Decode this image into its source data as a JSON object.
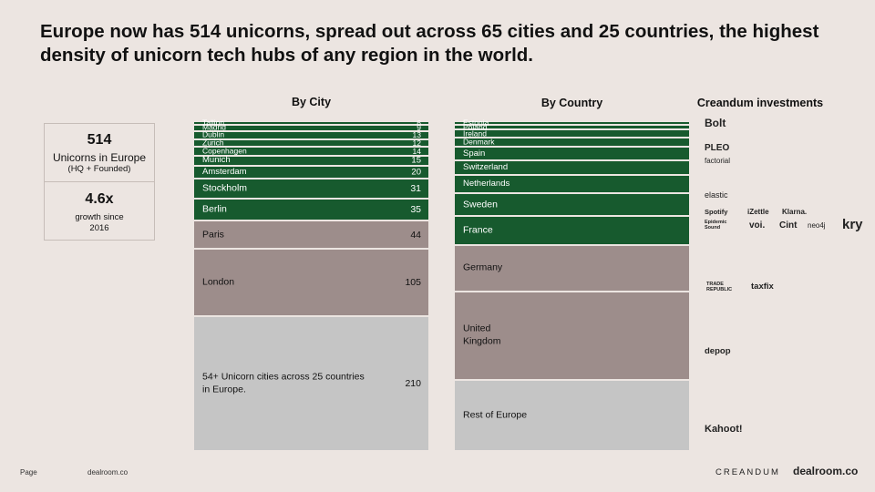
{
  "title": "Europe now has 514 unicorns, spread out across 65 cities and 25 countries, the highest density of unicorn tech hubs of any region in the world.",
  "headers": {
    "by_city": "By City",
    "by_country": "By Country",
    "investments": "Creandum investments"
  },
  "stats": [
    {
      "value": "514",
      "label": "Unicorns in Europe",
      "sub": "(HQ + Founded)"
    },
    {
      "value": "4.6x",
      "label": "",
      "sub": "growth since\n2016"
    }
  ],
  "colors": {
    "green": "#175a2e",
    "mauve": "#9d8d8b",
    "grey": "#c5c5c5",
    "background": "#ece5e1"
  },
  "chart_data": [
    {
      "type": "bar",
      "title": "By City",
      "orientation": "stacked-vertical",
      "total": 514,
      "categories": [
        "Tallinn",
        "Madrid",
        "Dublin",
        "Zurich",
        "Copenhagen",
        "Munich",
        "Amsterdam",
        "Stockholm",
        "Berlin",
        "Paris",
        "London",
        "54+ Unicorn cities across 25 countries\nin Europe."
      ],
      "values": [
        6,
        9,
        13,
        12,
        14,
        15,
        20,
        31,
        35,
        44,
        105,
        210
      ],
      "value_labels": [
        "6",
        "9",
        "13",
        "12",
        "14",
        "15",
        "20",
        "31",
        "35",
        "44",
        "105",
        "210"
      ],
      "colors": [
        "green",
        "green",
        "green",
        "green",
        "green",
        "green",
        "green",
        "green",
        "green",
        "mauve",
        "mauve",
        "grey"
      ]
    },
    {
      "type": "bar",
      "title": "By Country",
      "orientation": "stacked-vertical",
      "total": 514,
      "categories": [
        "Estonia",
        "Poland",
        "Ireland",
        "Denmark",
        "Spain",
        "Switzerland",
        "Netherlands",
        "Sweden",
        "France",
        "Germany",
        "United\nKingdom",
        "Rest of Europe"
      ],
      "values": [
        6,
        7,
        13,
        14,
        21,
        23,
        28,
        36,
        45,
        72,
        138,
        111
      ],
      "value_labels": [
        "",
        "",
        "",
        "",
        "",
        "",
        "",
        "",
        "",
        "",
        "",
        ""
      ],
      "colors": [
        "green",
        "green",
        "green",
        "green",
        "green",
        "green",
        "green",
        "green",
        "green",
        "mauve",
        "mauve",
        "grey"
      ]
    }
  ],
  "investments": [
    {
      "name": "Bolt",
      "icon": "bolt-logo"
    },
    {
      "name": "PLEO",
      "icon": "pleo-logo"
    },
    {
      "name": "factorial",
      "icon": "factorial-logo"
    },
    {
      "name": "elastic",
      "icon": "elastic-logo"
    },
    {
      "name": "Spotify",
      "icon": "spotify-logo"
    },
    {
      "name": "iZettle",
      "icon": "izettle-logo"
    },
    {
      "name": "Klarna.",
      "icon": "klarna-logo"
    },
    {
      "name": "Epidemic Sound",
      "icon": "epidemic-sound-logo"
    },
    {
      "name": "voi.",
      "icon": "voi-logo"
    },
    {
      "name": "Cint",
      "icon": "cint-logo"
    },
    {
      "name": "neo4j",
      "icon": "neo4j-logo"
    },
    {
      "name": "kry",
      "icon": "kry-logo"
    },
    {
      "name": "TRADE REPUBLIC",
      "icon": "trade-republic-logo"
    },
    {
      "name": "taxfix",
      "icon": "taxfix-logo"
    },
    {
      "name": "depop",
      "icon": "depop-logo"
    },
    {
      "name": "Kahoot!",
      "icon": "kahoot-logo"
    }
  ],
  "footer": {
    "page": "Page",
    "source": "dealroom.co",
    "brand_left": "CREANDUM",
    "brand_right": "dealroom.co"
  }
}
